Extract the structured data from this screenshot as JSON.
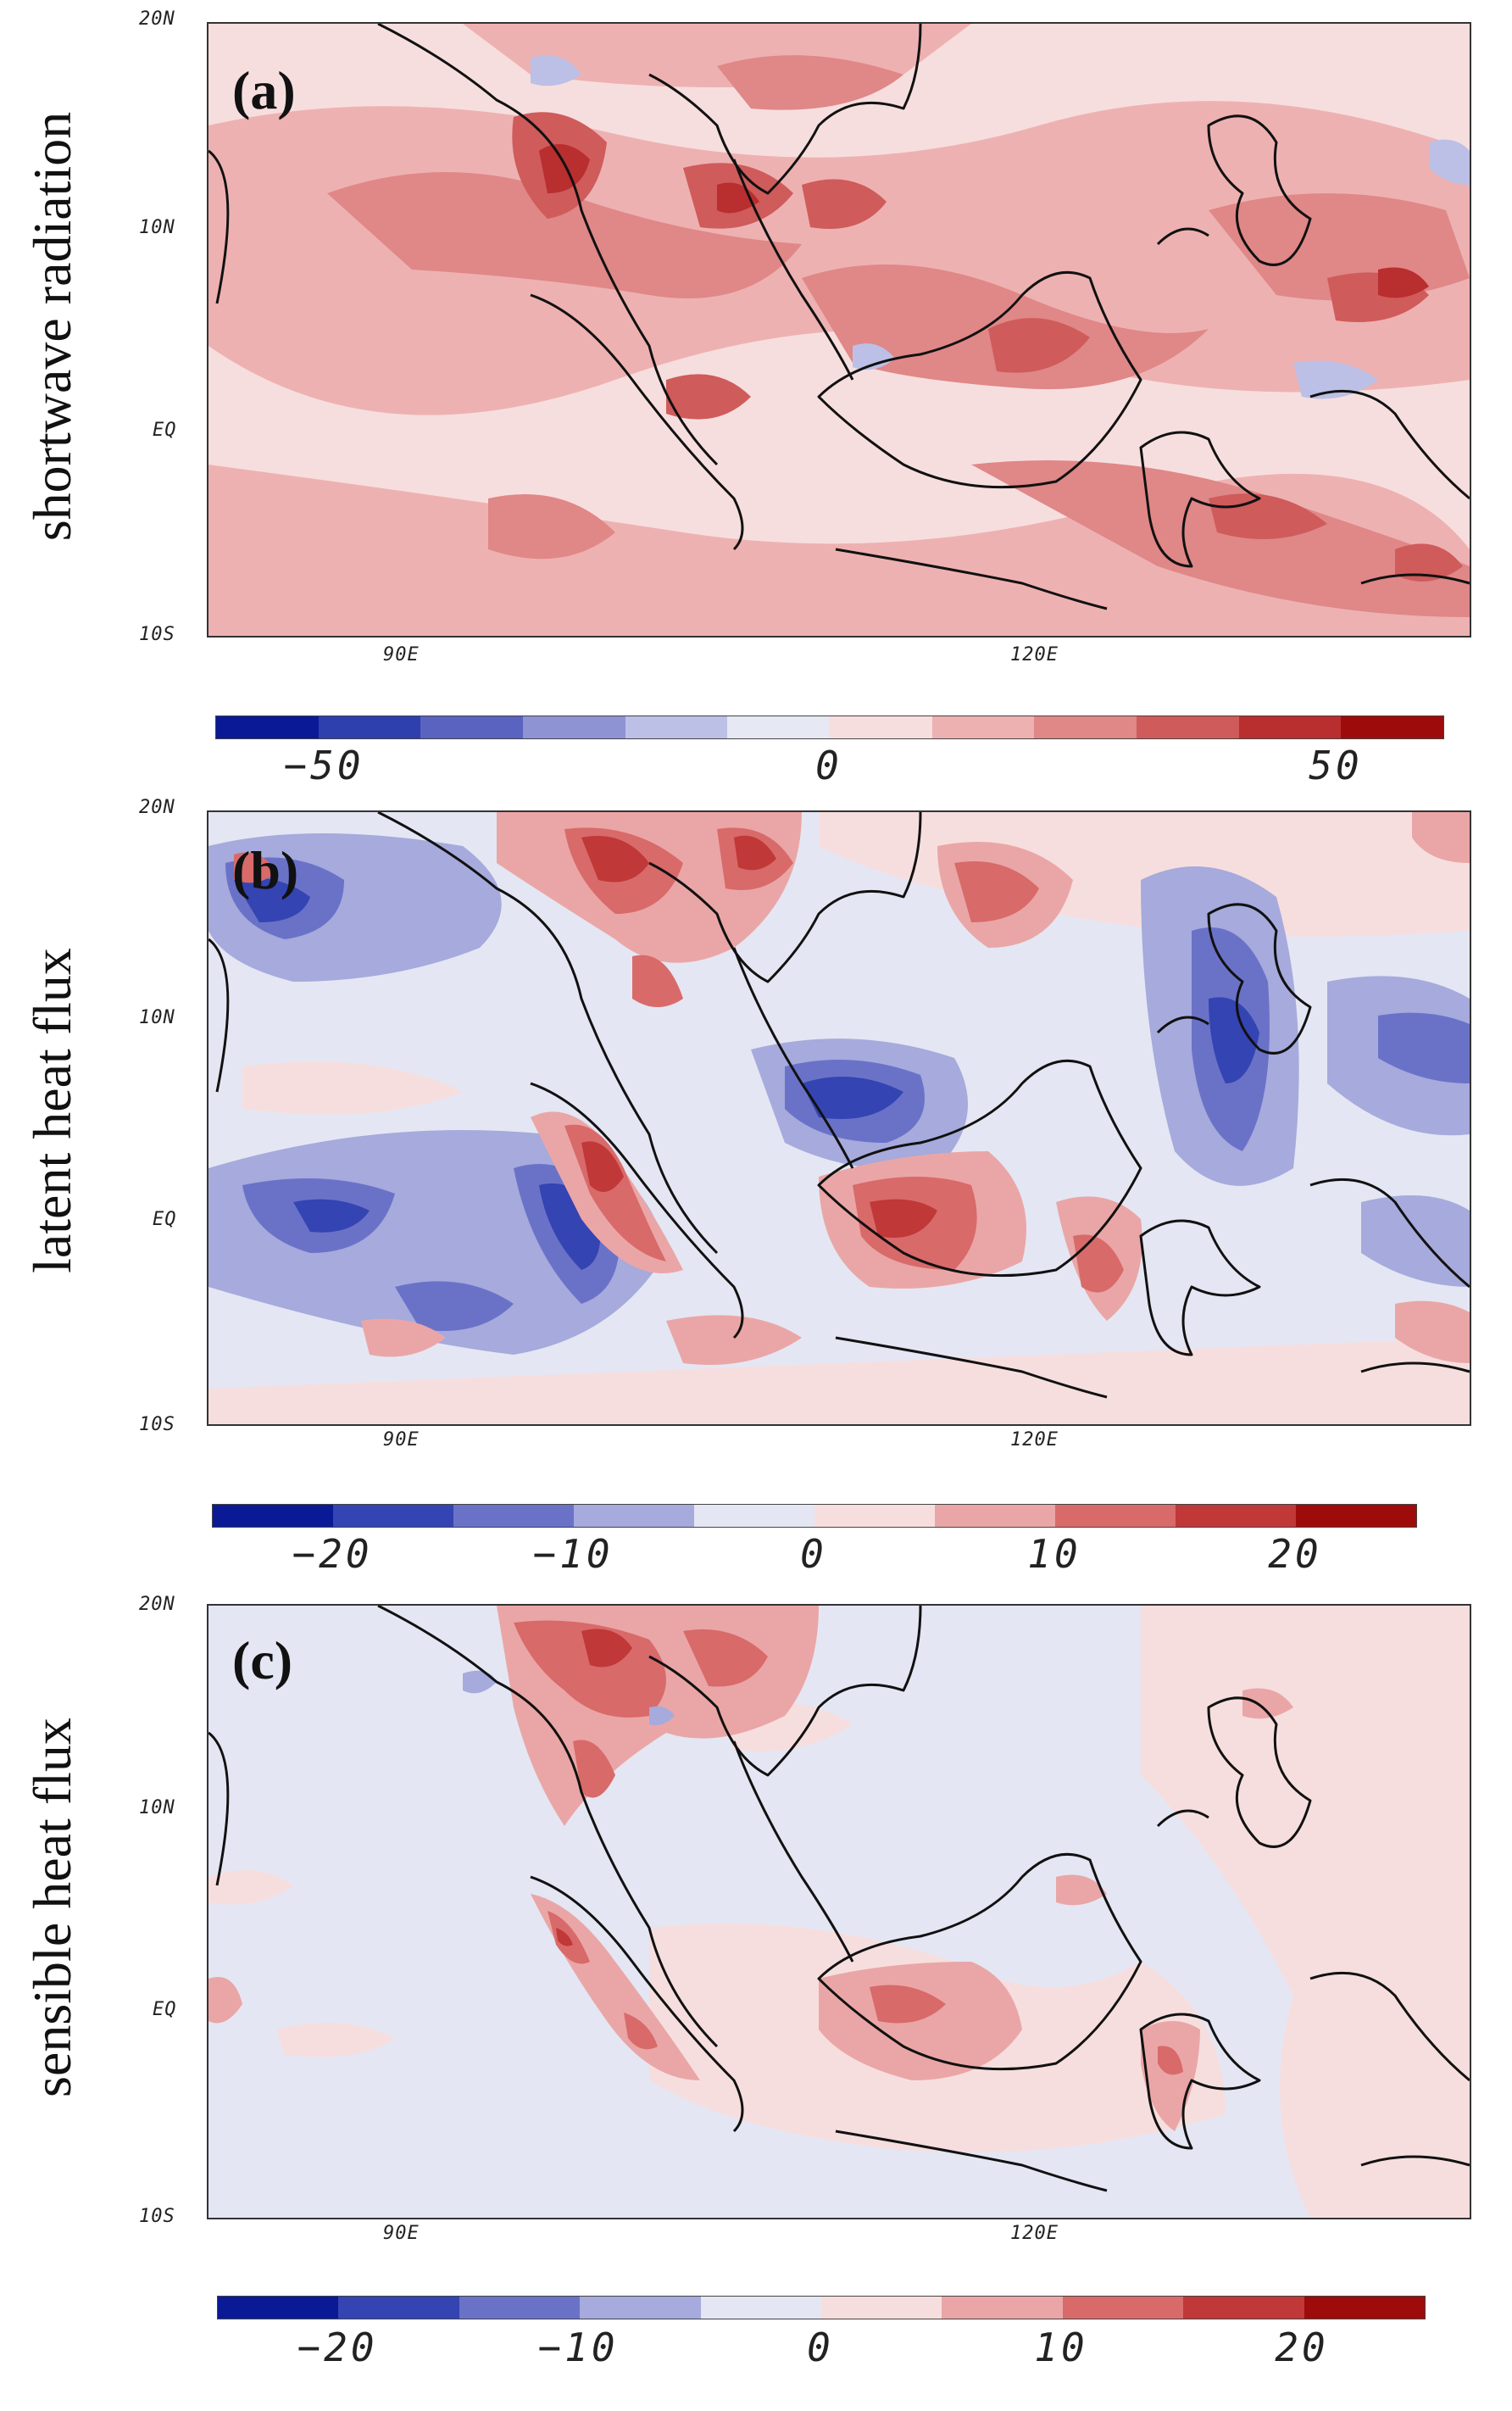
{
  "panels": [
    {
      "label": "(a)",
      "ylabel": "shortwave radiation",
      "colorbar": {
        "ticks": [
          "−50",
          "0",
          "50"
        ],
        "colors": [
          "#0a1a96",
          "#2e3fae",
          "#5a63c0",
          "#8e93d4",
          "#bcc0e6",
          "#e6e8f3",
          "#f7dede",
          "#eeb1b1",
          "#e08787",
          "#cf5b5b",
          "#b92e2e",
          "#9e0b0b"
        ]
      }
    },
    {
      "label": "(b)",
      "ylabel": "latent heat flux",
      "colorbar": {
        "ticks": [
          "−20",
          "−10",
          "0",
          "10",
          "20"
        ],
        "colors": [
          "#0a1a96",
          "#3444b2",
          "#6a72c8",
          "#a6aadc",
          "#e4e6f3",
          "#f7dede",
          "#eaa6a6",
          "#d96a6a",
          "#c03838",
          "#9e0b0b"
        ]
      }
    },
    {
      "label": "(c)",
      "ylabel": "sensible heat flux",
      "colorbar": {
        "ticks": [
          "−20",
          "−10",
          "0",
          "10",
          "20"
        ],
        "colors": [
          "#0a1a96",
          "#3444b2",
          "#6a72c8",
          "#a6aadc",
          "#e4e6f3",
          "#f7dede",
          "#eaa6a6",
          "#d96a6a",
          "#c03838",
          "#9e0b0b"
        ]
      }
    }
  ],
  "lat_ticks": [
    "20N",
    "10N",
    "EQ",
    "10S"
  ],
  "lon_ticks": [
    "90E",
    "120E"
  ]
}
